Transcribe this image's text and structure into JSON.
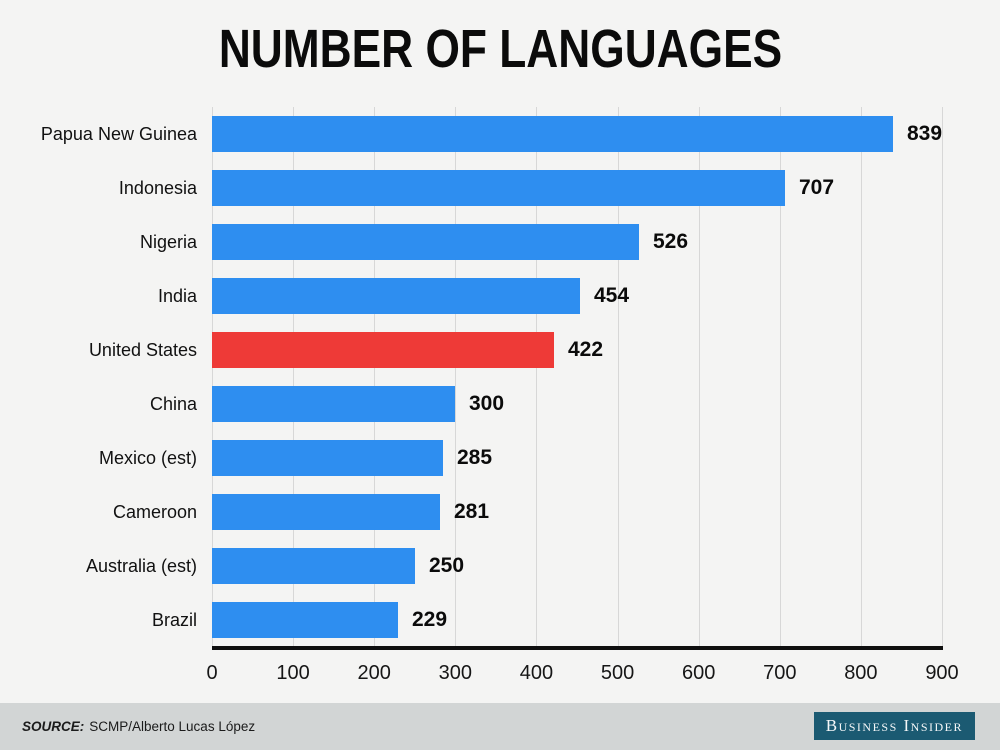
{
  "title": "NUMBER OF LANGUAGES",
  "colors": {
    "background": "#f4f4f3",
    "bar_default": "#2e8ef0",
    "bar_highlight": "#ee3a37",
    "gridline": "#d7d7d7",
    "axis": "#0f0f0f",
    "footer_bg": "#d2d5d5",
    "logo_bg": "#1b5a72"
  },
  "chart_data": {
    "type": "bar",
    "orientation": "horizontal",
    "title": "NUMBER OF LANGUAGES",
    "categories": [
      "Papua New Guinea",
      "Indonesia",
      "Nigeria",
      "India",
      "United States",
      "China",
      "Mexico (est)",
      "Cameroon",
      "Australia (est)",
      "Brazil"
    ],
    "values": [
      839,
      707,
      526,
      454,
      422,
      300,
      285,
      281,
      250,
      229
    ],
    "highlighted_category": "United States",
    "xlim": [
      0,
      900
    ],
    "x_ticks": [
      "0",
      "100",
      "200",
      "300",
      "400",
      "500",
      "600",
      "700",
      "800",
      "900"
    ],
    "grid": true,
    "legend": false,
    "value_labels": true
  },
  "footer": {
    "source_label": "SOURCE:",
    "source_text": "SCMP/Alberto Lucas López",
    "logo_text": "Business Insider"
  }
}
